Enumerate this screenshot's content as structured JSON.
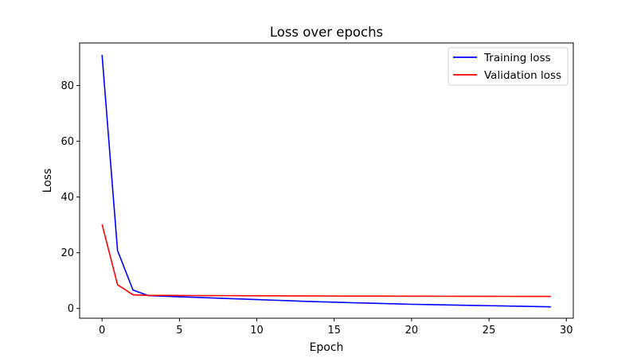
{
  "chart_data": {
    "type": "line",
    "title": "Loss over epochs",
    "xlabel": "Epoch",
    "ylabel": "Loss",
    "xlim": [
      -1.45,
      30.45
    ],
    "ylim": [
      -3.5,
      95.3
    ],
    "xticks": [
      0,
      5,
      10,
      15,
      20,
      25,
      30
    ],
    "yticks": [
      0,
      20,
      40,
      60,
      80
    ],
    "grid": false,
    "legend_position": "top-right",
    "x": [
      0,
      1,
      2,
      3,
      4,
      5,
      6,
      7,
      8,
      9,
      10,
      11,
      12,
      13,
      14,
      15,
      16,
      17,
      18,
      19,
      20,
      21,
      22,
      23,
      24,
      25,
      26,
      27,
      28,
      29
    ],
    "series": [
      {
        "name": "Training loss",
        "color": "#0000ff",
        "values": [
          91.0,
          20.8,
          6.6,
          4.6,
          4.4,
          4.2,
          4.0,
          3.8,
          3.6,
          3.4,
          3.2,
          3.0,
          2.8,
          2.6,
          2.4,
          2.25,
          2.1,
          1.95,
          1.8,
          1.65,
          1.5,
          1.4,
          1.3,
          1.2,
          1.1,
          1.0,
          0.9,
          0.8,
          0.7,
          0.6
        ]
      },
      {
        "name": "Validation loss",
        "color": "#ff0000",
        "values": [
          30.2,
          8.5,
          4.9,
          4.7,
          4.68,
          4.66,
          4.64,
          4.62,
          4.6,
          4.58,
          4.56,
          4.54,
          4.52,
          4.5,
          4.48,
          4.46,
          4.45,
          4.44,
          4.43,
          4.42,
          4.41,
          4.4,
          4.39,
          4.38,
          4.37,
          4.36,
          4.35,
          4.34,
          4.33,
          4.32
        ]
      }
    ]
  }
}
